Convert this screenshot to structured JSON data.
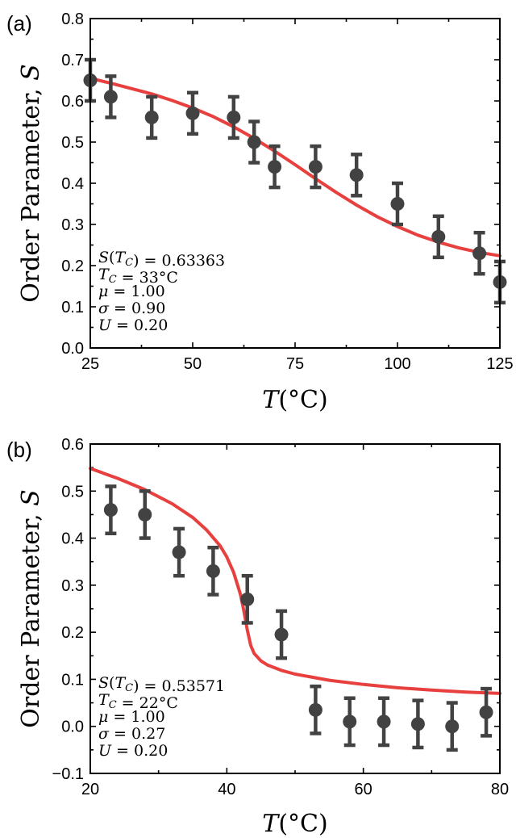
{
  "chart_data": [
    {
      "type": "scatter",
      "panel_label": "(a)",
      "xlabel_italic": "T",
      "xlabel_unit": "(°C)",
      "ylabel_text": "Order Parameter, ",
      "ylabel_italic": "S",
      "xlim": [
        25,
        125
      ],
      "ylim": [
        0.0,
        0.8
      ],
      "xticks": [
        25,
        50,
        75,
        100,
        125
      ],
      "yticks": [
        0.0,
        0.1,
        0.2,
        0.3,
        0.4,
        0.5,
        0.6,
        0.7,
        0.8
      ],
      "ytick_decimals": 1,
      "annotations": [
        "S(T_C) = 0.63363",
        "T_C = 33°C",
        "μ = 1.00",
        "σ = 0.90",
        "U = 0.20"
      ],
      "series": [
        {
          "kind": "points_with_errorbars",
          "color": "#424242",
          "x": [
            25,
            30,
            40,
            50,
            60,
            65,
            70,
            80,
            90,
            100,
            110,
            120,
            125
          ],
          "y": [
            0.65,
            0.61,
            0.56,
            0.57,
            0.56,
            0.5,
            0.44,
            0.44,
            0.42,
            0.35,
            0.27,
            0.23,
            0.16
          ],
          "err": [
            0.05,
            0.05,
            0.05,
            0.05,
            0.05,
            0.05,
            0.05,
            0.05,
            0.05,
            0.05,
            0.05,
            0.05,
            0.05
          ]
        },
        {
          "kind": "line",
          "color": "#e8403f",
          "x": [
            25,
            30,
            35,
            40,
            45,
            50,
            55,
            60,
            65,
            70,
            75,
            80,
            85,
            90,
            95,
            100,
            105,
            110,
            115,
            120,
            125
          ],
          "y": [
            0.655,
            0.643,
            0.63,
            0.617,
            0.601,
            0.583,
            0.562,
            0.537,
            0.509,
            0.478,
            0.445,
            0.411,
            0.378,
            0.347,
            0.319,
            0.295,
            0.274,
            0.257,
            0.243,
            0.232,
            0.224
          ]
        }
      ]
    },
    {
      "type": "scatter",
      "panel_label": "(b)",
      "xlabel_italic": "T",
      "xlabel_unit": "(°C)",
      "ylabel_text": "Order Parameter, ",
      "ylabel_italic": "S",
      "xlim": [
        20,
        80
      ],
      "ylim": [
        -0.1,
        0.6
      ],
      "xticks": [
        20,
        40,
        60,
        80
      ],
      "yticks": [
        -0.1,
        0.0,
        0.1,
        0.2,
        0.3,
        0.4,
        0.5,
        0.6
      ],
      "ytick_decimals": 1,
      "annotations": [
        "S(T_C) = 0.53571",
        "T_C = 22°C",
        "μ = 1.00",
        "σ = 0.27",
        "U = 0.20"
      ],
      "series": [
        {
          "kind": "points_with_errorbars",
          "color": "#424242",
          "x": [
            23,
            28,
            33,
            38,
            43,
            48,
            53,
            58,
            63,
            68,
            73,
            78
          ],
          "y": [
            0.46,
            0.45,
            0.37,
            0.33,
            0.27,
            0.195,
            0.035,
            0.01,
            0.01,
            0.005,
            0.0,
            0.03
          ],
          "err": [
            0.05,
            0.05,
            0.05,
            0.05,
            0.05,
            0.05,
            0.05,
            0.05,
            0.05,
            0.05,
            0.05,
            0.05
          ]
        },
        {
          "kind": "line",
          "color": "#e8403f",
          "x": [
            20,
            24,
            28,
            32,
            35,
            37,
            39,
            40,
            41,
            42,
            42.5,
            43,
            43.5,
            44,
            45,
            46,
            48,
            50,
            55,
            60,
            65,
            70,
            75,
            80
          ],
          "y": [
            0.548,
            0.527,
            0.503,
            0.473,
            0.444,
            0.418,
            0.384,
            0.36,
            0.327,
            0.28,
            0.245,
            0.205,
            0.172,
            0.155,
            0.139,
            0.13,
            0.119,
            0.111,
            0.098,
            0.089,
            0.082,
            0.077,
            0.073,
            0.07
          ]
        }
      ]
    }
  ]
}
